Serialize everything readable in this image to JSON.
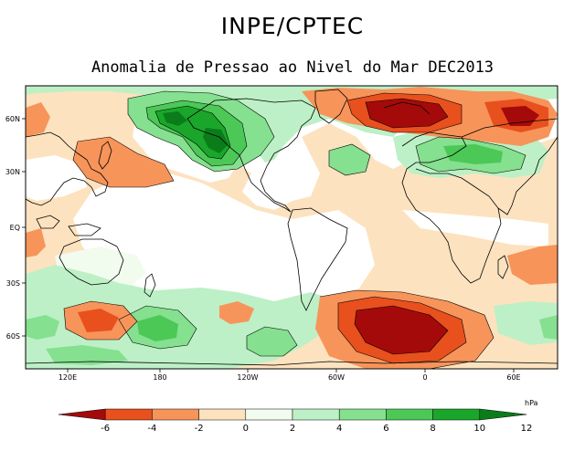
{
  "header": {
    "title": "INPE/CPTEC",
    "subtitle": "Anomalia de Pressao ao Nivel do Mar DEC2013"
  },
  "map": {
    "lat_labels": [
      "60N",
      "30N",
      "EQ",
      "30S",
      "60S"
    ],
    "lon_labels": [
      "120E",
      "180",
      "120W",
      "60W",
      "0",
      "60E"
    ]
  },
  "colorbar": {
    "unit": "hPa",
    "ticks": [
      "-6",
      "-4",
      "-2",
      "0",
      "2",
      "4",
      "6",
      "8",
      "10",
      "12"
    ],
    "colors": [
      "#a50a0a",
      "#e8501e",
      "#f7945a",
      "#fde2bf",
      "#f1fbee",
      "#bdf0c6",
      "#85e08f",
      "#4cc857",
      "#1aa62a",
      "#0a7d1a"
    ]
  },
  "chart_data": {
    "type": "heatmap",
    "title": "Anomalia de Pressao ao Nivel do Mar DEC2013",
    "unit": "hPa",
    "levels": [
      -6,
      -4,
      -2,
      0,
      2,
      4,
      6,
      8,
      10,
      12
    ],
    "features": [
      {
        "name": "North Pacific high anomaly",
        "peak": 10
      },
      {
        "name": "North Atlantic low anomaly",
        "peak": -6
      },
      {
        "name": "Europe/Asia high anomaly",
        "peak": 4
      },
      {
        "name": "South Atlantic low anomaly",
        "peak": -6
      },
      {
        "name": "South Pacific high anomaly",
        "peak": 6
      },
      {
        "name": "Southern Ocean high anomaly",
        "peak": 6
      }
    ]
  }
}
